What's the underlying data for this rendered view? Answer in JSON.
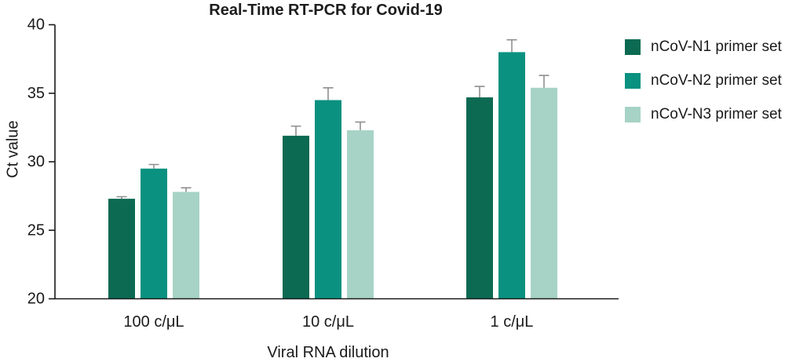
{
  "chart_data": {
    "type": "bar",
    "title": "Real-Time RT-PCR for Covid-19",
    "xlabel": "Viral RNA dilution",
    "ylabel": "Ct value",
    "ylim": [
      20,
      40
    ],
    "yticks": [
      20,
      25,
      30,
      35,
      40
    ],
    "categories": [
      "100 c/μL",
      "10 c/μL",
      "1 c/μL"
    ],
    "series": [
      {
        "name": "nCoV-N1 primer set",
        "color": "#0c6a52",
        "values": [
          27.3,
          31.9,
          34.7
        ],
        "errors": [
          0.15,
          0.7,
          0.8
        ]
      },
      {
        "name": "nCoV-N2 primer set",
        "color": "#0a9180",
        "values": [
          29.5,
          34.5,
          38.0
        ],
        "errors": [
          0.3,
          0.9,
          0.9
        ]
      },
      {
        "name": "nCoV-N3 primer set",
        "color": "#a6d3c5",
        "values": [
          27.8,
          32.3,
          35.4
        ],
        "errors": [
          0.3,
          0.6,
          0.9
        ]
      }
    ],
    "error_bar_color": "#8f8f8f",
    "axis_color": "#1a1a1a",
    "grid": false,
    "legend_position": "right"
  }
}
